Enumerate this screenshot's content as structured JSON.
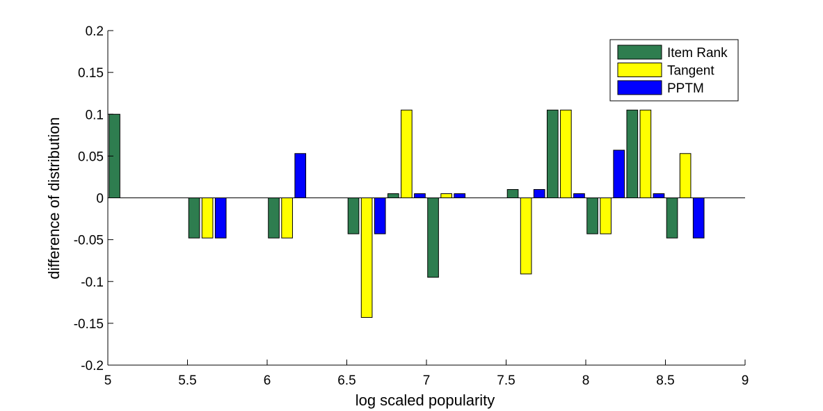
{
  "chart_data": {
    "type": "bar",
    "title": "",
    "xlabel": "log scaled popularity",
    "ylabel": "difference of distribution",
    "xlim": [
      5,
      9
    ],
    "ylim": [
      -0.2,
      0.2
    ],
    "xticks": [
      "5",
      "5.5",
      "6",
      "6.5",
      "7",
      "7.5",
      "8",
      "8.5",
      "9"
    ],
    "yticks": [
      "0.2",
      "0.15",
      "0.1",
      "0.05",
      "0",
      "-0.05",
      "-0.1",
      "-0.15",
      "-0.2"
    ],
    "x": [
      5.0,
      5.5,
      6.0,
      6.5,
      6.75,
      7.0,
      7.5,
      7.75,
      8.0,
      8.25,
      8.5,
      8.75
    ],
    "grid": false,
    "legend_position": "top-right",
    "series": [
      {
        "name": "Item Rank",
        "color": "#2e7d4f",
        "values": [
          0.1,
          -0.048,
          -0.048,
          -0.043,
          0.005,
          -0.095,
          0.01,
          0.105,
          -0.043,
          0.105,
          -0.048,
          0
        ]
      },
      {
        "name": "Tangent",
        "color": "#ffff00",
        "values": [
          0,
          -0.048,
          -0.048,
          -0.143,
          0.105,
          0.005,
          -0.091,
          0.105,
          -0.043,
          0.105,
          0.053,
          0
        ]
      },
      {
        "name": "PPTM",
        "color": "#0000ff",
        "values": [
          0,
          -0.048,
          0.053,
          -0.043,
          0.005,
          0.005,
          0.01,
          0.005,
          0.057,
          0.005,
          -0.048,
          0
        ]
      }
    ]
  }
}
